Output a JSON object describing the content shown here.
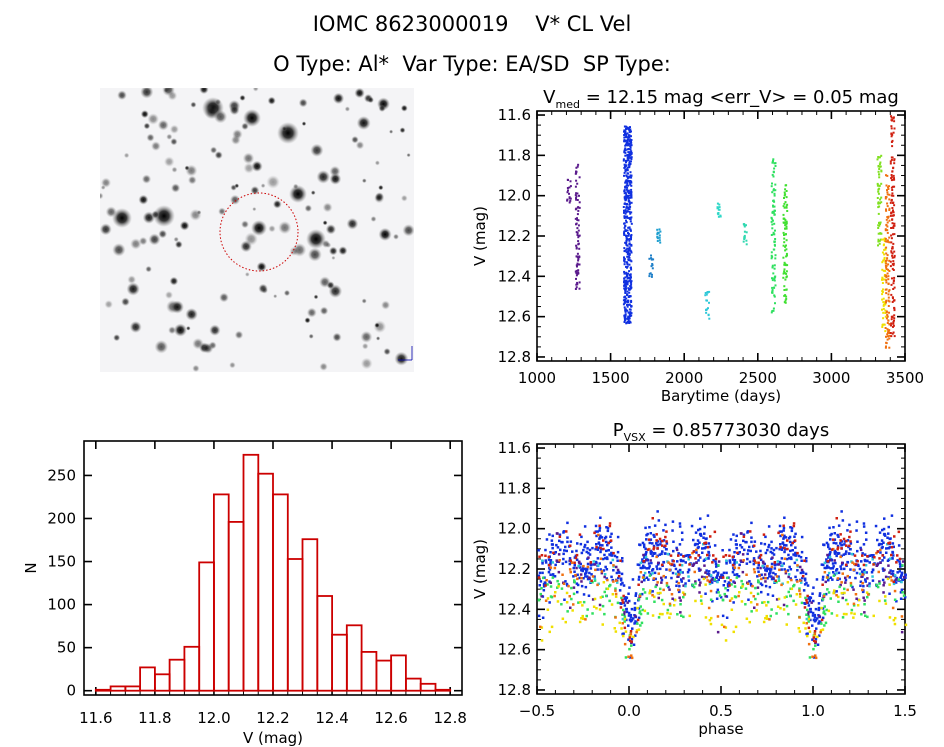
{
  "header": {
    "title": "IOMC 8623000019    V* CL Vel",
    "subtitle": "O Type: Al*  Var Type: EA/SD  SP Type:"
  },
  "starfield": {
    "description": "Finding chart (inverted greyscale star field) with dashed red aperture circle around target",
    "circle_color": "#cc0000"
  },
  "chart_data": [
    {
      "id": "light-curve",
      "type": "scatter",
      "title_main": "V",
      "title_sub": "med",
      "title_rest": " = 12.15 mag <err_V> = 0.05 mag",
      "xlabel": "Barytime (days)",
      "ylabel": "V (mag)",
      "xlim": [
        1000,
        3500
      ],
      "ylim": [
        12.82,
        11.58
      ],
      "xticks": [
        1000,
        1500,
        2000,
        2500,
        3000,
        3500
      ],
      "xticklabels": [
        "1000",
        "1500",
        "2000",
        "2500",
        "3000",
        "3500"
      ],
      "yticks": [
        11.6,
        11.8,
        12.0,
        12.2,
        12.4,
        12.6,
        12.8
      ],
      "yticklabels": [
        "11.6",
        "11.8",
        "12.0",
        "12.2",
        "12.4",
        "12.6",
        "12.8"
      ],
      "series": [
        {
          "name": "season-1a",
          "color": "#5a1a8c",
          "x": 1210,
          "ymin": 11.91,
          "ymax": 12.04
        },
        {
          "name": "season-1b",
          "color": "#5a1a8c",
          "x": 1270,
          "ymin": 11.84,
          "ymax": 12.49
        },
        {
          "name": "season-2",
          "color": "#1030e0",
          "x": 1610,
          "ymin": 11.65,
          "ymax": 12.63
        },
        {
          "name": "season-3a",
          "color": "#1e7fc8",
          "x": 1770,
          "ymin": 12.29,
          "ymax": 12.4
        },
        {
          "name": "season-3b",
          "color": "#20a0d0",
          "x": 1820,
          "ymin": 12.16,
          "ymax": 12.23
        },
        {
          "name": "season-4a",
          "color": "#30c8d8",
          "x": 2150,
          "ymin": 12.47,
          "ymax": 12.61
        },
        {
          "name": "season-4b",
          "color": "#30d8c8",
          "x": 2230,
          "ymin": 12.03,
          "ymax": 12.11
        },
        {
          "name": "season-5",
          "color": "#30d8b0",
          "x": 2410,
          "ymin": 12.12,
          "ymax": 12.24
        },
        {
          "name": "season-6a",
          "color": "#30e060",
          "x": 2600,
          "ymin": 11.81,
          "ymax": 12.58
        },
        {
          "name": "season-6b",
          "color": "#40e030",
          "x": 2680,
          "ymin": 11.94,
          "ymax": 12.57
        },
        {
          "name": "season-7a",
          "color": "#80e020",
          "x": 3320,
          "ymin": 11.78,
          "ymax": 12.25
        },
        {
          "name": "season-7b",
          "color": "#f0e000",
          "x": 3350,
          "ymin": 12.2,
          "ymax": 12.67
        },
        {
          "name": "season-7c",
          "color": "#f07010",
          "x": 3375,
          "ymin": 11.87,
          "ymax": 12.77
        },
        {
          "name": "season-7d",
          "color": "#d02010",
          "x": 3410,
          "ymin": 11.6,
          "ymax": 12.7
        }
      ]
    },
    {
      "id": "histogram",
      "type": "bar",
      "title": "",
      "xlabel": "V (mag)",
      "ylabel": "N",
      "xlim": [
        11.56,
        12.84
      ],
      "ylim": [
        -5,
        290
      ],
      "bin_width": 0.05,
      "bar_color": "#cc0000",
      "categories": [
        11.6,
        11.65,
        11.7,
        11.75,
        11.8,
        11.85,
        11.9,
        11.95,
        12.0,
        12.05,
        12.1,
        12.15,
        12.2,
        12.25,
        12.3,
        12.35,
        12.4,
        12.45,
        12.5,
        12.55,
        12.6,
        12.65,
        12.7,
        12.75
      ],
      "values": [
        1,
        5,
        5,
        27,
        19,
        36,
        51,
        149,
        228,
        196,
        274,
        252,
        228,
        153,
        176,
        110,
        65,
        76,
        45,
        35,
        41,
        14,
        8,
        1
      ],
      "xticks": [
        11.6,
        11.8,
        12.0,
        12.2,
        12.4,
        12.6,
        12.8
      ],
      "xticklabels": [
        "11.6",
        "11.8",
        "12.0",
        "12.2",
        "12.4",
        "12.6",
        "12.8"
      ],
      "yticks": [
        0,
        50,
        100,
        150,
        200,
        250
      ],
      "yticklabels": [
        "0",
        "50",
        "100",
        "150",
        "200",
        "250"
      ]
    },
    {
      "id": "phase-plot",
      "type": "scatter",
      "title_main": "P",
      "title_sub": "VSX",
      "title_rest": " = 0.85773030 days",
      "xlabel": "phase",
      "ylabel": "V (mag)",
      "xlim": [
        -0.5,
        1.5
      ],
      "ylim": [
        12.82,
        11.58
      ],
      "period_days": 0.8577303,
      "xticks": [
        -0.5,
        0.0,
        0.5,
        1.0,
        1.5
      ],
      "xticklabels": [
        "−0.5",
        "0.0",
        "0.5",
        "1.0",
        "1.5"
      ],
      "yticks": [
        11.6,
        11.8,
        12.0,
        12.2,
        12.4,
        12.6,
        12.8
      ],
      "yticklabels": [
        "11.6",
        "11.8",
        "12.0",
        "12.2",
        "12.4",
        "12.6",
        "12.8"
      ],
      "series": [
        {
          "name": "season-2",
          "color": "#1030e0",
          "baseline": 12.1,
          "spread": 0.09,
          "depth_primary": 0.4,
          "depth_secondary": 0.25,
          "n": 520
        },
        {
          "name": "season-1",
          "color": "#5a1a8c",
          "baseline": 12.2,
          "spread": 0.08,
          "depth_primary": 0.3,
          "depth_secondary": 0.15,
          "n": 70
        },
        {
          "name": "season-6",
          "color": "#30e060",
          "baseline": 12.3,
          "spread": 0.06,
          "depth_primary": 0.3,
          "depth_secondary": 0.1,
          "n": 90
        },
        {
          "name": "season-4",
          "color": "#30c8d8",
          "baseline": 12.15,
          "spread": 0.05,
          "depth_primary": 0.4,
          "depth_secondary": 0.2,
          "n": 30
        },
        {
          "name": "season-7b",
          "color": "#f0e000",
          "baseline": 12.35,
          "spread": 0.06,
          "depth_primary": 0.25,
          "depth_secondary": 0.2,
          "n": 70
        },
        {
          "name": "season-7c",
          "color": "#f07010",
          "baseline": 12.2,
          "spread": 0.07,
          "depth_primary": 0.45,
          "depth_secondary": 0.2,
          "n": 70
        },
        {
          "name": "season-7d",
          "color": "#d02010",
          "baseline": 12.05,
          "spread": 0.06,
          "depth_primary": 0.55,
          "depth_secondary": 0.25,
          "n": 80
        }
      ]
    }
  ]
}
